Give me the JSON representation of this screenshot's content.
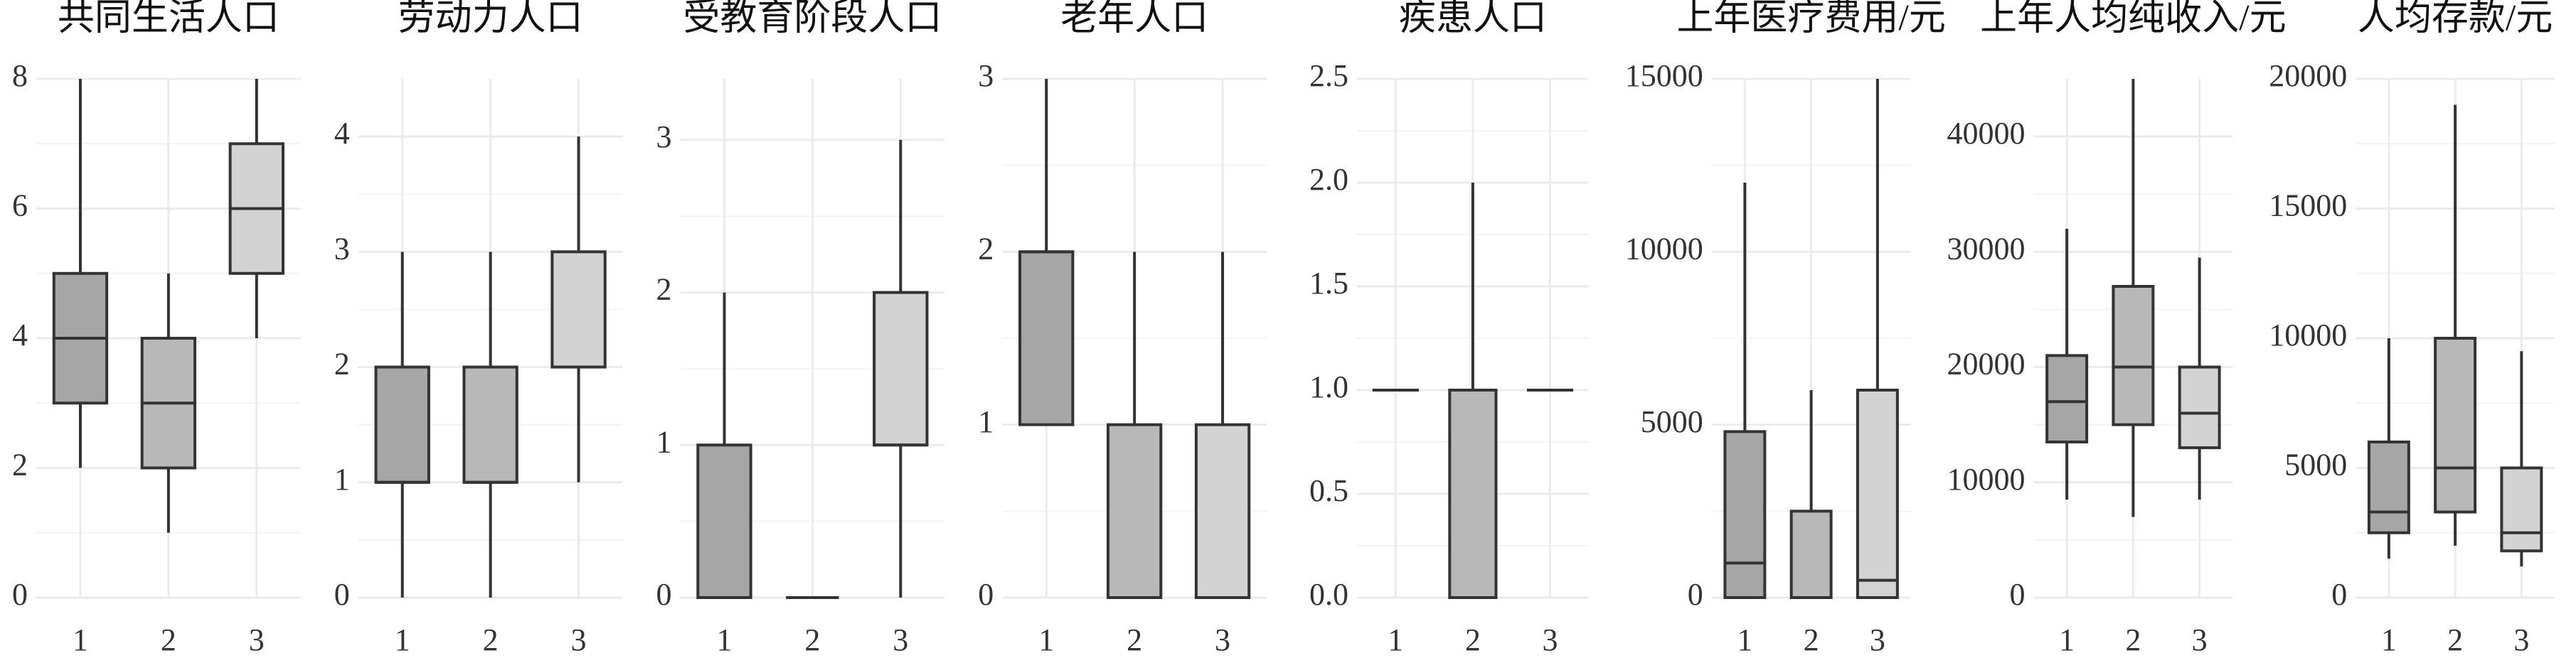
{
  "chart_data": [
    {
      "type": "box",
      "title": "共同生活人口",
      "categories": [
        "1",
        "2",
        "3"
      ],
      "colors": [
        "#a6a6a6",
        "#b8b8b8",
        "#d3d3d3"
      ],
      "min": [
        2,
        1,
        4
      ],
      "q1": [
        3,
        2,
        5
      ],
      "median": [
        4,
        3,
        6
      ],
      "q3": [
        5,
        4,
        7
      ],
      "max": [
        8,
        5,
        8
      ],
      "ylim": [
        0,
        8
      ],
      "yticks": [
        0,
        2,
        4,
        6,
        8
      ],
      "grid": true
    },
    {
      "type": "box",
      "title": "劳动力人口",
      "categories": [
        "1",
        "2",
        "3"
      ],
      "colors": [
        "#a6a6a6",
        "#b8b8b8",
        "#d3d3d3"
      ],
      "min": [
        0,
        0,
        1
      ],
      "q1": [
        1,
        1,
        2
      ],
      "median": [
        1,
        1,
        2
      ],
      "q3": [
        2,
        2,
        3
      ],
      "max": [
        3,
        3,
        4
      ],
      "ylim": [
        0,
        4.5
      ],
      "yticks": [
        0,
        1,
        2,
        3,
        4
      ],
      "grid": true
    },
    {
      "type": "box",
      "title": "受教育阶段人口",
      "categories": [
        "1",
        "2",
        "3"
      ],
      "colors": [
        "#a6a6a6",
        "#b8b8b8",
        "#d3d3d3"
      ],
      "min": [
        0,
        0,
        0
      ],
      "q1": [
        0,
        0,
        1
      ],
      "median": [
        0,
        0,
        1
      ],
      "q3": [
        1,
        0,
        2
      ],
      "max": [
        2,
        0,
        3
      ],
      "ylim": [
        0,
        3.4
      ],
      "yticks": [
        0,
        1,
        2,
        3
      ],
      "grid": true
    },
    {
      "type": "box",
      "title": "老年人口",
      "categories": [
        "1",
        "2",
        "3"
      ],
      "colors": [
        "#a6a6a6",
        "#b8b8b8",
        "#d3d3d3"
      ],
      "min": [
        1,
        0,
        0
      ],
      "q1": [
        1,
        0,
        0
      ],
      "median": [
        2,
        0,
        0
      ],
      "q3": [
        2,
        1,
        1
      ],
      "max": [
        3,
        2,
        2
      ],
      "ylim": [
        0,
        3
      ],
      "yticks": [
        0,
        1,
        2,
        3
      ],
      "grid": true
    },
    {
      "type": "box",
      "title": "疾患人口",
      "categories": [
        "1",
        "2",
        "3"
      ],
      "colors": [
        "#a6a6a6",
        "#b8b8b8",
        "#d3d3d3"
      ],
      "min": [
        1,
        0,
        1
      ],
      "q1": [
        1,
        0,
        1
      ],
      "median": [
        1,
        0,
        1
      ],
      "q3": [
        1,
        1,
        1
      ],
      "max": [
        1,
        2,
        1
      ],
      "ylim": [
        0,
        2.5
      ],
      "yticks": [
        {
          "value": 0,
          "label": "0.0"
        },
        0.5,
        {
          "value": 1,
          "label": "1.0"
        },
        1.5,
        {
          "value": 2,
          "label": "2.0"
        },
        2.5
      ],
      "grid": true
    },
    {
      "type": "box",
      "title": "上年医疗费用/元",
      "categories": [
        "1",
        "2",
        "3"
      ],
      "colors": [
        "#a6a6a6",
        "#b8b8b8",
        "#d3d3d3"
      ],
      "min": [
        0,
        0,
        0
      ],
      "q1": [
        0,
        0,
        0
      ],
      "median": [
        1000,
        0,
        500
      ],
      "q3": [
        4800,
        2500,
        6000
      ],
      "max": [
        12000,
        6000,
        15000
      ],
      "ylim": [
        0,
        15000
      ],
      "yticks": [
        0,
        5000,
        10000,
        15000
      ],
      "grid": true
    },
    {
      "type": "box",
      "title": "上年人均纯收入/元",
      "categories": [
        "1",
        "2",
        "3"
      ],
      "colors": [
        "#a6a6a6",
        "#b8b8b8",
        "#d3d3d3"
      ],
      "min": [
        8500,
        7000,
        8500
      ],
      "q1": [
        13500,
        15000,
        13000
      ],
      "median": [
        17000,
        20000,
        16000
      ],
      "q3": [
        21000,
        27000,
        20000
      ],
      "max": [
        32000,
        45000,
        29500
      ],
      "ylim": [
        0,
        45000
      ],
      "yticks": [
        0,
        10000,
        20000,
        30000,
        40000
      ],
      "grid": true
    },
    {
      "type": "box",
      "title": "人均存款/元",
      "categories": [
        "1",
        "2",
        "3"
      ],
      "colors": [
        "#a6a6a6",
        "#b8b8b8",
        "#d3d3d3"
      ],
      "min": [
        1500,
        2000,
        1200
      ],
      "q1": [
        2500,
        3300,
        1800
      ],
      "median": [
        3300,
        5000,
        2500
      ],
      "q3": [
        6000,
        10000,
        5000
      ],
      "max": [
        10000,
        19000,
        9500
      ],
      "ylim": [
        0,
        20000
      ],
      "yticks": [
        0,
        5000,
        10000,
        15000,
        20000
      ],
      "grid": true
    }
  ]
}
